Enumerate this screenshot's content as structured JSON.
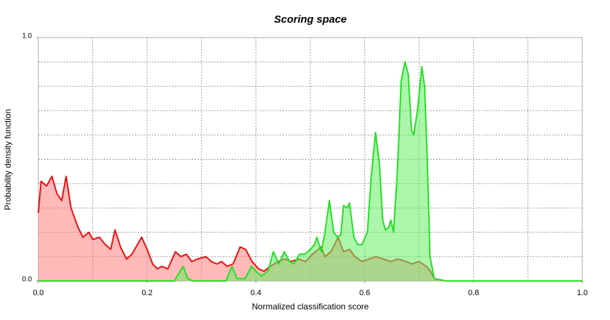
{
  "chart_data": {
    "type": "area",
    "title": "Scoring space",
    "xlabel": "Normalized classification score",
    "ylabel": "Probability density function",
    "xlim": [
      0,
      1
    ],
    "ylim": [
      0,
      1
    ],
    "xticks": [
      {
        "value": 0,
        "label": "0.0"
      },
      {
        "value": 0.2,
        "label": "0.2"
      },
      {
        "value": 0.4,
        "label": "0.4"
      },
      {
        "value": 0.6,
        "label": "0.6"
      },
      {
        "value": 0.8,
        "label": "0.8"
      },
      {
        "value": 1,
        "label": "1.0"
      }
    ],
    "yticks": [
      {
        "value": 0,
        "label": "0.0"
      },
      {
        "value": 1,
        "label": "1.0"
      }
    ],
    "xgrid": [
      0.1,
      0.2,
      0.3,
      0.4,
      0.5,
      0.6,
      0.7,
      0.8,
      0.9
    ],
    "ygrid": [
      0.1,
      0.2,
      0.3,
      0.4,
      0.5,
      0.6,
      0.7,
      0.8,
      0.9
    ],
    "grid": true,
    "series": [
      {
        "color": "#e81010",
        "fill": "#ff8080",
        "x": [
          0,
          0.005,
          0.015,
          0.025,
          0.034,
          0.043,
          0.051,
          0.06,
          0.073,
          0.082,
          0.093,
          0.1,
          0.112,
          0.123,
          0.133,
          0.141,
          0.151,
          0.162,
          0.172,
          0.19,
          0.2,
          0.21,
          0.219,
          0.227,
          0.238,
          0.252,
          0.262,
          0.272,
          0.282,
          0.292,
          0.308,
          0.318,
          0.328,
          0.337,
          0.347,
          0.358,
          0.371,
          0.381,
          0.393,
          0.405,
          0.415,
          0.426,
          0.441,
          0.452,
          0.465,
          0.478,
          0.491,
          0.504,
          0.52,
          0.527,
          0.538,
          0.551,
          0.561,
          0.572,
          0.582,
          0.595,
          0.608,
          0.621,
          0.634,
          0.648,
          0.661,
          0.676,
          0.687,
          0.7,
          0.713,
          0.721,
          0.728,
          0.75,
          1
        ],
        "values": [
          0.28,
          0.41,
          0.39,
          0.43,
          0.36,
          0.33,
          0.43,
          0.3,
          0.22,
          0.18,
          0.2,
          0.17,
          0.18,
          0.15,
          0.13,
          0.21,
          0.14,
          0.09,
          0.11,
          0.18,
          0.13,
          0.07,
          0.05,
          0.06,
          0.05,
          0.12,
          0.1,
          0.11,
          0.08,
          0.09,
          0.1,
          0.08,
          0.07,
          0.08,
          0.06,
          0.07,
          0.14,
          0.13,
          0.08,
          0.05,
          0.04,
          0.06,
          0.08,
          0.09,
          0.08,
          0.09,
          0.08,
          0.11,
          0.14,
          0.1,
          0.12,
          0.18,
          0.12,
          0.13,
          0.1,
          0.08,
          0.09,
          0.1,
          0.09,
          0.08,
          0.09,
          0.08,
          0.07,
          0.08,
          0.06,
          0.04,
          0.01,
          0,
          0
        ]
      },
      {
        "color": "#22e022",
        "fill": "#66ee66",
        "x": [
          0,
          0.25,
          0.258,
          0.266,
          0.275,
          0.285,
          0.345,
          0.356,
          0.365,
          0.38,
          0.392,
          0.4,
          0.41,
          0.422,
          0.432,
          0.442,
          0.452,
          0.462,
          0.47,
          0.48,
          0.49,
          0.5,
          0.508,
          0.512,
          0.52,
          0.527,
          0.535,
          0.543,
          0.55,
          0.556,
          0.561,
          0.568,
          0.572,
          0.58,
          0.587,
          0.595,
          0.605,
          0.612,
          0.62,
          0.627,
          0.633,
          0.638,
          0.644,
          0.648,
          0.653,
          0.66,
          0.667,
          0.674,
          0.68,
          0.686,
          0.69,
          0.697,
          0.705,
          0.71,
          0.715,
          0.72,
          0.728,
          0.75,
          1
        ],
        "values": [
          0,
          0,
          0.03,
          0.06,
          0.01,
          0,
          0,
          0.06,
          0.01,
          0.01,
          0.06,
          0.04,
          0.02,
          0.04,
          0.12,
          0.07,
          0.12,
          0.08,
          0.07,
          0.11,
          0.11,
          0.13,
          0.15,
          0.18,
          0.12,
          0.2,
          0.33,
          0.2,
          0.18,
          0.19,
          0.31,
          0.3,
          0.32,
          0.18,
          0.15,
          0.15,
          0.2,
          0.43,
          0.61,
          0.48,
          0.25,
          0.21,
          0.22,
          0.25,
          0.2,
          0.45,
          0.82,
          0.9,
          0.85,
          0.62,
          0.6,
          0.7,
          0.88,
          0.8,
          0.5,
          0.1,
          0.01,
          0,
          0
        ]
      }
    ]
  }
}
